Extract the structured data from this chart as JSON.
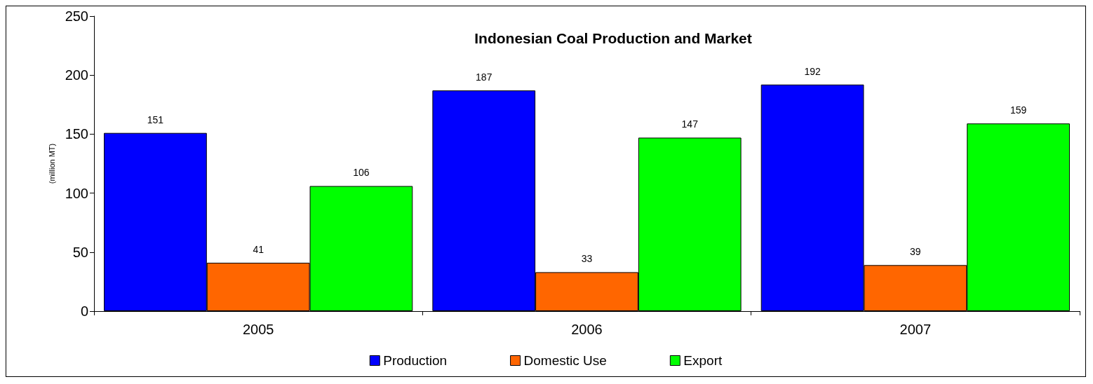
{
  "chart_data": {
    "type": "bar",
    "title": "Indonesian Coal Production and Market",
    "ylabel": "(million MT)",
    "categories": [
      "2005",
      "2006",
      "2007"
    ],
    "series": [
      {
        "name": "Production",
        "color": "#0000ff",
        "values": [
          151,
          187,
          192
        ]
      },
      {
        "name": "Domestic Use",
        "color": "#ff6600",
        "values": [
          41,
          33,
          39
        ]
      },
      {
        "name": "Export",
        "color": "#00ff00",
        "values": [
          106,
          147,
          159
        ]
      }
    ],
    "ylim": [
      0,
      250
    ],
    "yticks": [
      0,
      50,
      100,
      150,
      200,
      250
    ],
    "grid": false,
    "legend": "bottom",
    "data_labels": true
  }
}
